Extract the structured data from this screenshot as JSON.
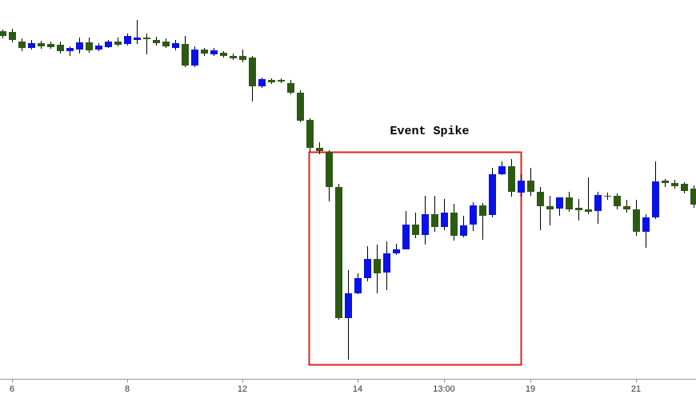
{
  "chart_data": {
    "type": "candlestick",
    "annotation": "Event Spike",
    "up_color": "#0a12e6",
    "down_color": "#2d5a12",
    "wick_color": "#000000",
    "ylim": [
      0,
      474
    ],
    "categories": [
      null,
      "6",
      null,
      null,
      null,
      null,
      null,
      null,
      null,
      null,
      null,
      null,
      null,
      "8",
      null,
      null,
      null,
      null,
      null,
      null,
      null,
      null,
      null,
      null,
      null,
      "12",
      null,
      null,
      null,
      null,
      null,
      null,
      null,
      null,
      null,
      null,
      null,
      "14",
      null,
      null,
      null,
      null,
      null,
      null,
      null,
      null,
      "13:00",
      null,
      null,
      null,
      null,
      null,
      null,
      null,
      null,
      "19",
      null,
      null,
      null,
      null,
      null,
      null,
      null,
      null,
      null,
      null,
      "21",
      null,
      null,
      null,
      null,
      null,
      null
    ],
    "open": [
      435,
      434,
      422,
      414,
      420,
      419,
      418,
      410,
      412,
      421,
      412,
      415,
      422,
      419,
      424,
      427,
      424,
      422,
      414,
      419,
      392,
      412,
      406,
      408,
      404,
      404,
      402,
      366,
      374,
      374,
      370,
      358,
      324,
      289,
      284,
      240,
      76,
      107,
      126,
      150,
      133,
      157,
      162,
      193,
      180,
      206,
      190,
      208,
      179,
      193,
      217,
      205,
      256,
      266,
      233,
      248,
      234,
      216,
      213,
      227,
      214,
      212,
      210,
      229,
      229,
      216,
      212,
      184,
      202,
      248,
      245,
      244,
      238
    ],
    "high": [
      437,
      438,
      426,
      424,
      423,
      422,
      422,
      416,
      427,
      427,
      420,
      424,
      427,
      432,
      449,
      432,
      428,
      426,
      424,
      429,
      416,
      414,
      414,
      410,
      407,
      412,
      404,
      377,
      376,
      376,
      374,
      361,
      326,
      296,
      286,
      244,
      136,
      132,
      166,
      168,
      172,
      169,
      210,
      208,
      229,
      229,
      225,
      219,
      204,
      221,
      220,
      264,
      272,
      275,
      256,
      264,
      240,
      229,
      227,
      234,
      225,
      252,
      234,
      233,
      232,
      224,
      224,
      206,
      272,
      250,
      249,
      246,
      242
    ],
    "low": [
      426,
      421,
      410,
      412,
      413,
      413,
      407,
      404,
      407,
      408,
      410,
      414,
      416,
      417,
      419,
      406,
      417,
      414,
      411,
      390,
      390,
      404,
      404,
      402,
      399,
      396,
      347,
      364,
      369,
      370,
      356,
      321,
      284,
      281,
      222,
      74,
      24,
      106,
      122,
      107,
      111,
      155,
      162,
      176,
      168,
      184,
      186,
      173,
      177,
      185,
      174,
      202,
      255,
      228,
      228,
      229,
      186,
      192,
      204,
      209,
      198,
      206,
      194,
      224,
      212,
      208,
      179,
      164,
      200,
      240,
      238,
      232,
      214
    ],
    "close": [
      429,
      424,
      414,
      420,
      416,
      415,
      410,
      414,
      421,
      411,
      417,
      422,
      418,
      429,
      427,
      425,
      420,
      416,
      420,
      392,
      412,
      407,
      411,
      404,
      401,
      399,
      366,
      375,
      371,
      372,
      358,
      323,
      289,
      285,
      240,
      76,
      107,
      126,
      150,
      132,
      157,
      162,
      193,
      180,
      206,
      190,
      208,
      179,
      192,
      217,
      204,
      256,
      266,
      234,
      248,
      234,
      216,
      212,
      227,
      212,
      211,
      209,
      230,
      228,
      216,
      212,
      184,
      202,
      247,
      245,
      241,
      235,
      218
    ]
  }
}
